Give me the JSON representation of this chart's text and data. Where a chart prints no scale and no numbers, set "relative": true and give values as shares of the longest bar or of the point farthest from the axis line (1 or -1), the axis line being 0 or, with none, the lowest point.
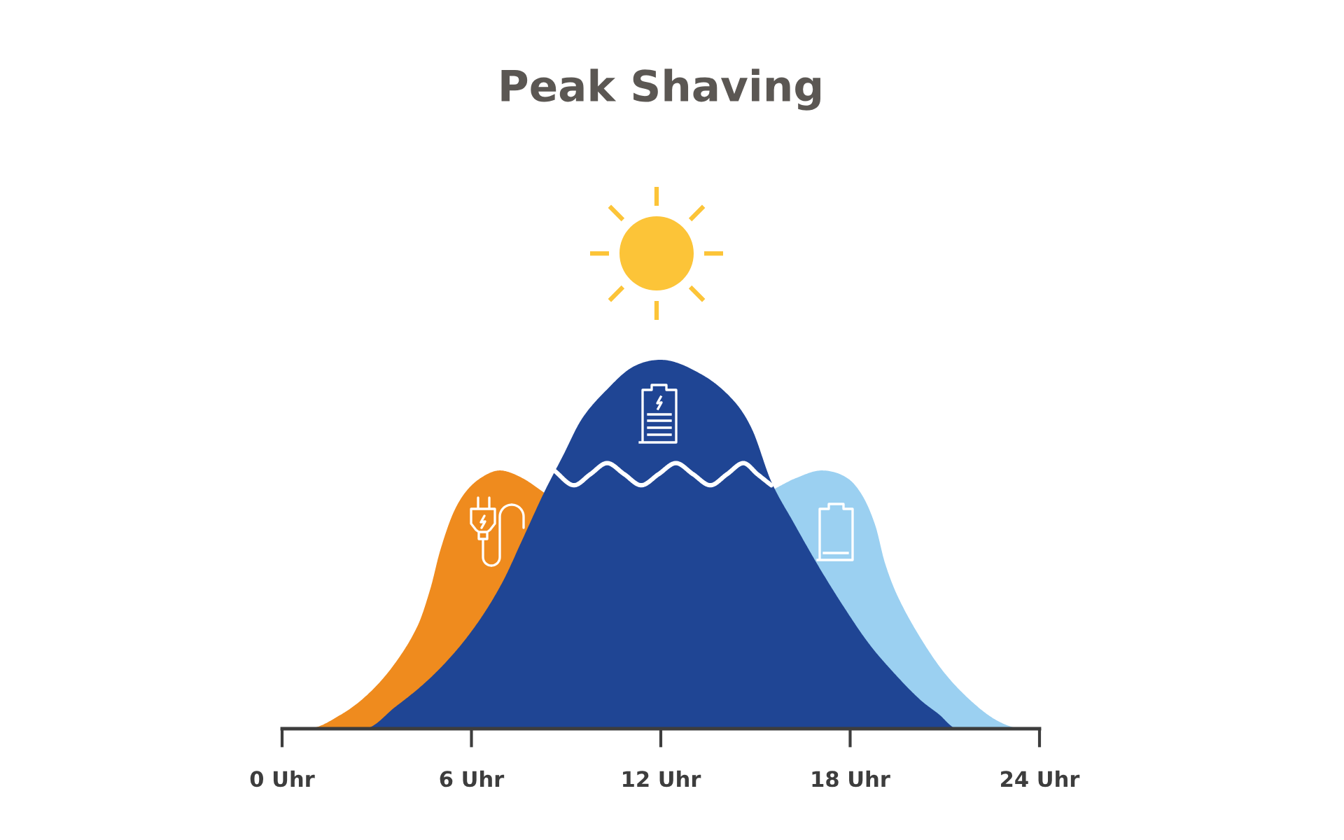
{
  "chart_data": {
    "type": "area",
    "title": "Peak Shaving",
    "relative": true,
    "xlim": [
      0,
      24
    ],
    "xticks": [
      {
        "value": 0,
        "label": "0 Uhr"
      },
      {
        "value": 6,
        "label": "6 Uhr"
      },
      {
        "value": 12,
        "label": "12 Uhr"
      },
      {
        "value": 18,
        "label": "18 Uhr"
      },
      {
        "value": 24,
        "label": "24 Uhr"
      }
    ],
    "series": [
      {
        "color": "#ef8b1e",
        "x": [
          0.8,
          1.9,
          2.8,
          3.6,
          4.3,
          4.7,
          5.0,
          5.4,
          5.8,
          6.3,
          6.9,
          7.6,
          8.3
        ],
        "values": [
          0,
          0.04,
          0.1,
          0.18,
          0.28,
          0.38,
          0.48,
          0.58,
          0.64,
          0.68,
          0.7,
          0.68,
          0.64
        ]
      },
      {
        "color": "#9bd0f1",
        "x": [
          15.6,
          16.3,
          17.1,
          17.9,
          18.4,
          18.8,
          19.1,
          19.5,
          20.2,
          21.0,
          21.9,
          22.7,
          23.5
        ],
        "values": [
          0.65,
          0.68,
          0.7,
          0.68,
          0.63,
          0.55,
          0.45,
          0.36,
          0.25,
          0.15,
          0.07,
          0.02,
          0
        ]
      },
      {
        "color": "#1f4594",
        "x": [
          2.6,
          3.6,
          4.6,
          5.5,
          6.3,
          7.0,
          7.6,
          8.3,
          8.9,
          9.5,
          10.3,
          11.1,
          12,
          13.3,
          14.3,
          14.9,
          15.5,
          16.2,
          17.0,
          17.8,
          18.6,
          19.4,
          20.2,
          20.8,
          21.4
        ],
        "values": [
          0,
          0.06,
          0.13,
          0.21,
          0.3,
          0.4,
          0.51,
          0.64,
          0.74,
          0.84,
          0.92,
          0.98,
          1,
          0.96,
          0.89,
          0.81,
          0.67,
          0.56,
          0.44,
          0.33,
          0.23,
          0.15,
          0.08,
          0.04,
          0
        ]
      },
      {
        "type": "line",
        "color": "#ffffff",
        "x": [
          8.62,
          9.25,
          9.77,
          10.3,
          10.84,
          11.38,
          11.93,
          12.48,
          13.02,
          13.57,
          14.1,
          14.62,
          15.06,
          15.5
        ],
        "values": [
          0.7,
          0.66,
          0.69,
          0.72,
          0.69,
          0.66,
          0.69,
          0.72,
          0.69,
          0.66,
          0.69,
          0.72,
          0.69,
          0.66
        ]
      }
    ]
  }
}
